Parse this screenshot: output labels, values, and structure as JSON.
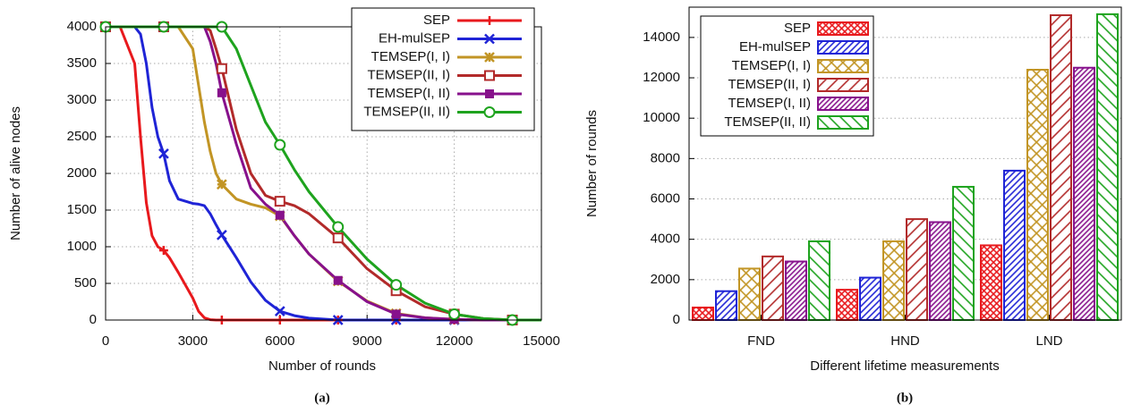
{
  "chart_data": [
    {
      "type": "line",
      "caption": "(a)",
      "x_label": "Number of rounds",
      "y_label": "Number of alive nodes",
      "x": [
        0,
        500,
        1000,
        1200,
        1400,
        1600,
        1800,
        2000,
        2200,
        2500,
        3000,
        3200,
        3400,
        3600,
        3800,
        4000,
        4500,
        5000,
        5500,
        6000,
        6500,
        7000,
        8000,
        9000,
        10000,
        11000,
        12000,
        13000,
        14000,
        15000
      ],
      "xlim": [
        0,
        15000
      ],
      "xticks": [
        0,
        3000,
        6000,
        9000,
        12000,
        15000
      ],
      "ylim": [
        0,
        4000
      ],
      "yticks": [
        0,
        500,
        1000,
        1500,
        2000,
        2500,
        3000,
        3500,
        4000
      ],
      "grid": true,
      "legend": "top-right",
      "series": [
        {
          "name": "SEP",
          "color": "#e8191d",
          "marker": "plus",
          "values": [
            4000,
            4000,
            3500,
            2500,
            1600,
            1150,
            1000,
            950,
            850,
            650,
            300,
            120,
            30,
            5,
            0,
            0,
            0,
            0,
            0,
            0,
            0,
            0,
            0,
            0,
            0,
            0,
            0,
            0,
            0,
            0
          ]
        },
        {
          "name": "EH-mulSEP",
          "color": "#1f24d6",
          "marker": "cross",
          "values": [
            4000,
            4000,
            4000,
            3900,
            3500,
            2900,
            2500,
            2270,
            1900,
            1650,
            1590,
            1580,
            1560,
            1450,
            1300,
            1160,
            850,
            520,
            270,
            120,
            60,
            25,
            0,
            0,
            0,
            0,
            0,
            0,
            0,
            0
          ]
        },
        {
          "name": "TEMSEP(I, I)",
          "color": "#c29525",
          "marker": "star",
          "values": [
            4000,
            4000,
            4000,
            4000,
            4000,
            4000,
            4000,
            4000,
            4000,
            4000,
            3700,
            3200,
            2700,
            2300,
            2000,
            1850,
            1650,
            1580,
            1530,
            1420,
            1150,
            900,
            530,
            260,
            90,
            30,
            10,
            0,
            0,
            0
          ]
        },
        {
          "name": "TEMSEP(II, I)",
          "color": "#b22a2a",
          "marker": "square-open",
          "values": [
            4000,
            4000,
            4000,
            4000,
            4000,
            4000,
            4000,
            4000,
            4000,
            4000,
            4000,
            4000,
            4000,
            3950,
            3700,
            3430,
            2600,
            2000,
            1700,
            1620,
            1560,
            1450,
            1120,
            700,
            400,
            180,
            80,
            20,
            0,
            0
          ]
        },
        {
          "name": "TEMSEP(I, II)",
          "color": "#87118c",
          "marker": "square",
          "values": [
            4000,
            4000,
            4000,
            4000,
            4000,
            4000,
            4000,
            4000,
            4000,
            4000,
            4000,
            4000,
            4000,
            3800,
            3500,
            3100,
            2400,
            1800,
            1580,
            1430,
            1150,
            900,
            540,
            250,
            80,
            30,
            10,
            0,
            0,
            0
          ]
        },
        {
          "name": "TEMSEP(II, II)",
          "color": "#1ea31e",
          "marker": "circle-open",
          "values": [
            4000,
            4000,
            4000,
            4000,
            4000,
            4000,
            4000,
            4000,
            4000,
            4000,
            4000,
            4000,
            4000,
            4000,
            4000,
            4000,
            3700,
            3200,
            2700,
            2390,
            2050,
            1750,
            1270,
            830,
            480,
            230,
            80,
            20,
            0,
            0
          ]
        }
      ]
    },
    {
      "type": "bar",
      "caption": "(b)",
      "x_label": "Different lifetime measurements",
      "y_label": "Number of rounds",
      "categories": [
        "FND",
        "HND",
        "LND"
      ],
      "ylim": [
        0,
        15500
      ],
      "yticks": [
        0,
        2000,
        4000,
        6000,
        8000,
        10000,
        12000,
        14000
      ],
      "grid": true,
      "legend": "top-left",
      "series": [
        {
          "name": "SEP",
          "color": "#e8191d",
          "values": [
            620,
            1500,
            3700
          ]
        },
        {
          "name": "EH-mulSEP",
          "color": "#1f24d6",
          "values": [
            1430,
            2100,
            7400
          ]
        },
        {
          "name": "TEMSEP(I, I)",
          "color": "#c29525",
          "values": [
            2550,
            3900,
            12400
          ]
        },
        {
          "name": "TEMSEP(II, I)",
          "color": "#b22a2a",
          "values": [
            3150,
            5000,
            15100
          ]
        },
        {
          "name": "TEMSEP(I, II)",
          "color": "#87118c",
          "values": [
            2900,
            4850,
            12500
          ]
        },
        {
          "name": "TEMSEP(II, II)",
          "color": "#1ea31e",
          "values": [
            3900,
            6600,
            15150
          ]
        }
      ]
    }
  ]
}
